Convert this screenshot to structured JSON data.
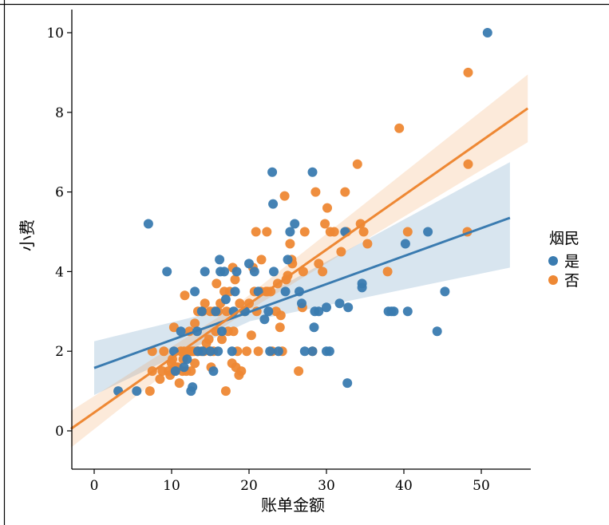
{
  "chart_data": {
    "type": "scatter",
    "xlabel": "账单金额",
    "ylabel": "小费",
    "xlim": [
      -3,
      56
    ],
    "ylim": [
      -0.9,
      10.6
    ],
    "x_ticks": [
      0,
      10,
      20,
      30,
      40,
      50
    ],
    "y_ticks": [
      0,
      2,
      4,
      6,
      8,
      10
    ],
    "legend": {
      "title": "烟民",
      "position": "right"
    },
    "series": [
      {
        "name": "是",
        "color": "#3a7bb0",
        "regression": {
          "x0": 0,
          "y0": 1.58,
          "x1": 53.7,
          "y1": 5.35
        },
        "ci_band": {
          "lower": [
            [
              0,
              0.9
            ],
            [
              20,
              2.75
            ],
            [
              53.7,
              4.1
            ]
          ],
          "upper": [
            [
              0,
              2.25
            ],
            [
              20,
              3.2
            ],
            [
              53.7,
              6.75
            ]
          ]
        },
        "points": [
          [
            3.1,
            1.0
          ],
          [
            5.5,
            1.0
          ],
          [
            7.0,
            5.2
          ],
          [
            9.4,
            4.0
          ],
          [
            10.3,
            2.0
          ],
          [
            10.5,
            1.5
          ],
          [
            11.2,
            2.5
          ],
          [
            11.6,
            1.6
          ],
          [
            12.0,
            1.8
          ],
          [
            12.5,
            1.0
          ],
          [
            12.7,
            1.1
          ],
          [
            13.0,
            3.5
          ],
          [
            13.3,
            2.5
          ],
          [
            13.4,
            2.0
          ],
          [
            13.9,
            3.0
          ],
          [
            14.0,
            2.0
          ],
          [
            14.3,
            4.0
          ],
          [
            15.0,
            2.0
          ],
          [
            15.4,
            1.5
          ],
          [
            15.7,
            3.0
          ],
          [
            16.0,
            2.0
          ],
          [
            16.2,
            4.3
          ],
          [
            16.3,
            4.0
          ],
          [
            16.5,
            2.5
          ],
          [
            16.8,
            4.0
          ],
          [
            17.0,
            3.3
          ],
          [
            17.8,
            2.0
          ],
          [
            18.0,
            3.0
          ],
          [
            18.2,
            3.5
          ],
          [
            18.4,
            4.0
          ],
          [
            19.5,
            3.0
          ],
          [
            20.0,
            4.2
          ],
          [
            20.7,
            4.0
          ],
          [
            21.2,
            3.5
          ],
          [
            22.0,
            2.8
          ],
          [
            22.5,
            3.0
          ],
          [
            22.7,
            2.0
          ],
          [
            23.0,
            6.5
          ],
          [
            23.1,
            5.7
          ],
          [
            23.2,
            4.0
          ],
          [
            23.8,
            2.0
          ],
          [
            24.7,
            3.5
          ],
          [
            25.0,
            4.3
          ],
          [
            25.3,
            5.0
          ],
          [
            25.9,
            5.2
          ],
          [
            26.5,
            3.5
          ],
          [
            26.8,
            3.2
          ],
          [
            27.2,
            2.0
          ],
          [
            28.2,
            2.0
          ],
          [
            28.2,
            6.5
          ],
          [
            28.4,
            2.6
          ],
          [
            28.5,
            3.0
          ],
          [
            29.0,
            3.0
          ],
          [
            30.0,
            3.1
          ],
          [
            30.0,
            2.0
          ],
          [
            30.4,
            2.0
          ],
          [
            31.7,
            3.2
          ],
          [
            32.4,
            5.0
          ],
          [
            32.7,
            1.2
          ],
          [
            32.8,
            3.1
          ],
          [
            34.6,
            3.7
          ],
          [
            34.6,
            3.6
          ],
          [
            38.0,
            3.0
          ],
          [
            38.4,
            3.0
          ],
          [
            38.7,
            3.0
          ],
          [
            40.2,
            4.7
          ],
          [
            40.5,
            3.0
          ],
          [
            43.1,
            5.0
          ],
          [
            44.3,
            2.5
          ],
          [
            45.3,
            3.5
          ],
          [
            50.8,
            10.0
          ]
        ]
      },
      {
        "name": "否",
        "color": "#ee8834",
        "regression": {
          "x0": -3,
          "y0": 0.05,
          "x1": 56,
          "y1": 8.1
        },
        "ci_band": {
          "lower": [
            [
              -3,
              -0.42
            ],
            [
              18,
              2.8
            ],
            [
              56,
              7.25
            ]
          ],
          "upper": [
            [
              -3,
              0.5
            ],
            [
              18,
              3.1
            ],
            [
              56,
              8.95
            ]
          ]
        },
        "points": [
          [
            7.2,
            1.0
          ],
          [
            7.5,
            1.5
          ],
          [
            7.5,
            2.0
          ],
          [
            8.5,
            1.3
          ],
          [
            8.8,
            1.5
          ],
          [
            9.0,
            2.0
          ],
          [
            9.6,
            1.5
          ],
          [
            9.8,
            1.4
          ],
          [
            10.0,
            1.7
          ],
          [
            10.1,
            1.8
          ],
          [
            10.3,
            1.5
          ],
          [
            10.3,
            2.6
          ],
          [
            10.4,
            1.6
          ],
          [
            10.6,
            1.6
          ],
          [
            10.8,
            1.6
          ],
          [
            11.0,
            1.2
          ],
          [
            11.2,
            2.0
          ],
          [
            11.4,
            1.5
          ],
          [
            11.5,
            1.8
          ],
          [
            11.6,
            2.0
          ],
          [
            11.7,
            3.4
          ],
          [
            11.9,
            1.5
          ],
          [
            12.0,
            2.0
          ],
          [
            12.3,
            2.5
          ],
          [
            12.5,
            1.5
          ],
          [
            12.6,
            2.0
          ],
          [
            12.7,
            2.0
          ],
          [
            12.9,
            2.0
          ],
          [
            13.0,
            2.7
          ],
          [
            13.0,
            1.7
          ],
          [
            13.3,
            2.0
          ],
          [
            13.4,
            3.0
          ],
          [
            13.4,
            2.0
          ],
          [
            13.8,
            2.0
          ],
          [
            14.0,
            3.0
          ],
          [
            14.2,
            2.0
          ],
          [
            14.3,
            3.2
          ],
          [
            14.5,
            2.2
          ],
          [
            14.8,
            2.3
          ],
          [
            15.0,
            2.0
          ],
          [
            15.0,
            3.0
          ],
          [
            15.1,
            1.6
          ],
          [
            15.4,
            2.0
          ],
          [
            15.5,
            3.0
          ],
          [
            15.7,
            2.5
          ],
          [
            15.8,
            3.7
          ],
          [
            16.0,
            3.0
          ],
          [
            16.3,
            3.2
          ],
          [
            16.5,
            2.3
          ],
          [
            16.8,
            3.5
          ],
          [
            17.0,
            1.0
          ],
          [
            17.1,
            3.0
          ],
          [
            17.3,
            2.5
          ],
          [
            17.5,
            3.5
          ],
          [
            17.8,
            1.7
          ],
          [
            17.9,
            4.1
          ],
          [
            18.0,
            2.5
          ],
          [
            18.2,
            3.8
          ],
          [
            18.3,
            1.6
          ],
          [
            18.5,
            2.0
          ],
          [
            18.7,
            1.4
          ],
          [
            18.8,
            3.2
          ],
          [
            19.0,
            1.5
          ],
          [
            19.4,
            3.0
          ],
          [
            19.7,
            2.0
          ],
          [
            20.0,
            3.2
          ],
          [
            20.3,
            2.4
          ],
          [
            20.5,
            4.1
          ],
          [
            20.7,
            3.5
          ],
          [
            20.9,
            5.0
          ],
          [
            21.0,
            3.0
          ],
          [
            21.2,
            2.0
          ],
          [
            21.5,
            3.5
          ],
          [
            21.6,
            4.3
          ],
          [
            22.2,
            3.5
          ],
          [
            22.3,
            5.0
          ],
          [
            22.4,
            3.5
          ],
          [
            22.8,
            3.5
          ],
          [
            23.0,
            2.0
          ],
          [
            23.5,
            3.0
          ],
          [
            23.7,
            3.7
          ],
          [
            24.0,
            2.6
          ],
          [
            24.1,
            2.9
          ],
          [
            24.3,
            2.0
          ],
          [
            24.6,
            5.9
          ],
          [
            24.8,
            3.8
          ],
          [
            25.0,
            3.9
          ],
          [
            25.3,
            4.7
          ],
          [
            25.5,
            4.3
          ],
          [
            25.6,
            4.2
          ],
          [
            26.4,
            1.5
          ],
          [
            26.9,
            3.1
          ],
          [
            27.0,
            4.0
          ],
          [
            27.2,
            5.0
          ],
          [
            28.2,
            2.0
          ],
          [
            28.6,
            6.0
          ],
          [
            29.0,
            4.2
          ],
          [
            29.5,
            4.0
          ],
          [
            29.8,
            5.2
          ],
          [
            30.1,
            5.6
          ],
          [
            30.5,
            5.0
          ],
          [
            31.0,
            5.0
          ],
          [
            31.9,
            4.5
          ],
          [
            32.4,
            6.0
          ],
          [
            32.6,
            5.0
          ],
          [
            34.0,
            6.7
          ],
          [
            34.4,
            5.2
          ],
          [
            34.8,
            5.0
          ],
          [
            35.3,
            4.7
          ],
          [
            37.9,
            4.0
          ],
          [
            39.4,
            7.6
          ],
          [
            40.5,
            5.0
          ],
          [
            48.2,
            5.0
          ],
          [
            48.3,
            6.7
          ],
          [
            48.3,
            9.0
          ]
        ]
      }
    ]
  }
}
